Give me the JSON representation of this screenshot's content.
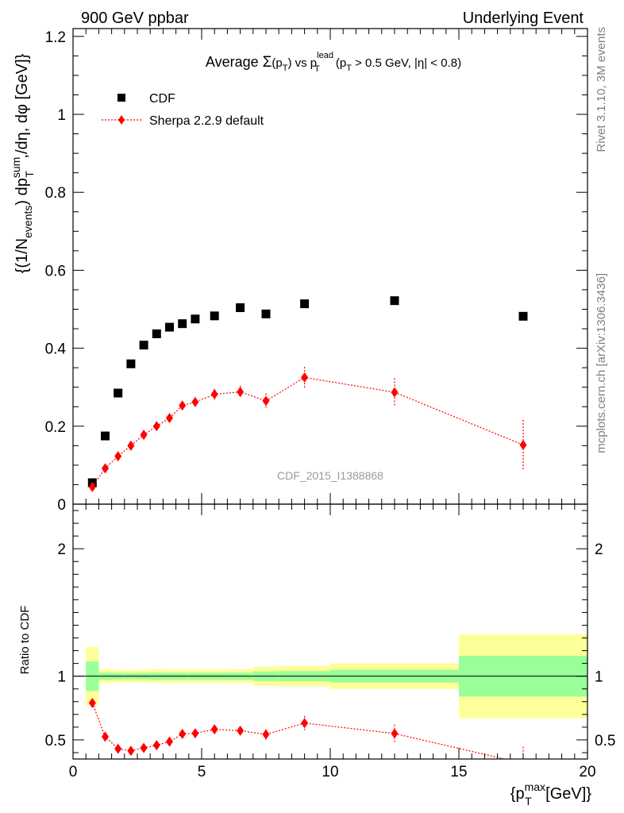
{
  "header": {
    "left": "900 GeV ppbar",
    "right": "Underlying Event"
  },
  "side_labels": {
    "rivet": "Rivet 3.1.10,  3M events",
    "mcplots": "mcplots.cern.ch [arXiv:1306.3436]"
  },
  "colors": {
    "cdf": "#000000",
    "sherpa": "#ff0000",
    "band_inner": "#99ff99",
    "band_outer": "#ffff99"
  },
  "chart_data": [
    {
      "type": "scatter",
      "panel": "main",
      "title_parts": {
        "prefix": "Average ",
        "sigma": "Σ",
        "pt": "(p",
        "pt_sub": "T",
        "pt_close": ")",
        "vs": " vs p",
        "lead_sup": "lead",
        "lead_sub": "T",
        "cut": " (p",
        "cut_sub": "T",
        "cut_rest": " > 0.5 GeV, |η| < 0.8)"
      },
      "ylabel_parts": {
        "a": "{(1/N",
        "a_sub": "events",
        "b": ") dp",
        "b_sup": "sum",
        "b_sub": "T",
        "c": " ,/dη, dφ [GeV]}"
      },
      "analysis_tag": "CDF_2015_I1388868",
      "xlim": [
        0,
        20
      ],
      "ylim": [
        0,
        1.22
      ],
      "yticks": [
        0,
        0.2,
        0.4,
        0.6,
        0.8,
        1,
        1.2
      ],
      "ytick_labels": [
        "0",
        "0.2",
        "0.4",
        "0.6",
        "0.8",
        "1",
        "1.2"
      ],
      "legend_position": "top-left",
      "series": [
        {
          "name": "CDF",
          "marker": "square",
          "x": [
            0.75,
            1.25,
            1.75,
            2.25,
            2.75,
            3.25,
            3.75,
            4.25,
            4.75,
            5.5,
            6.5,
            7.5,
            9.0,
            12.5,
            17.5
          ],
          "y": [
            0.055,
            0.175,
            0.285,
            0.36,
            0.408,
            0.437,
            0.454,
            0.463,
            0.475,
            0.483,
            0.504,
            0.488,
            0.514,
            0.522,
            0.482
          ],
          "xerr": [
            0.25,
            0.25,
            0.25,
            0.25,
            0.25,
            0.25,
            0.25,
            0.25,
            0.25,
            0.5,
            0.5,
            0.5,
            1.0,
            2.5,
            2.5
          ],
          "yerr": [
            0.004,
            0.004,
            0.005,
            0.006,
            0.006,
            0.007,
            0.007,
            0.007,
            0.008,
            0.008,
            0.009,
            0.009,
            0.01,
            0.012,
            0.02
          ]
        },
        {
          "name": "Sherpa 2.2.9 default",
          "marker": "diamond",
          "x": [
            0.75,
            1.25,
            1.75,
            2.25,
            2.75,
            3.25,
            3.75,
            4.25,
            4.75,
            5.5,
            6.5,
            7.5,
            9.0,
            12.5,
            17.5
          ],
          "y": [
            0.044,
            0.092,
            0.123,
            0.15,
            0.178,
            0.2,
            0.221,
            0.253,
            0.262,
            0.282,
            0.288,
            0.265,
            0.325,
            0.287,
            0.152
          ],
          "yerr": [
            0.004,
            0.006,
            0.007,
            0.008,
            0.009,
            0.01,
            0.01,
            0.011,
            0.012,
            0.014,
            0.016,
            0.019,
            0.027,
            0.036,
            0.064
          ]
        }
      ]
    },
    {
      "type": "scatter",
      "panel": "ratio",
      "ylabel": "Ratio to CDF",
      "xlabel_parts": {
        "a": "{p",
        "a_sup": "max",
        "a_sub": "T",
        "b": " [GeV]}"
      },
      "xlim": [
        0,
        20
      ],
      "ylim": [
        0.35,
        2.35
      ],
      "xticks": [
        0,
        5,
        10,
        15,
        20
      ],
      "xtick_labels": [
        "0",
        "5",
        "10",
        "15",
        "20"
      ],
      "yticks": [
        0.5,
        1,
        2
      ],
      "ytick_labels": [
        "0.5",
        "1",
        "2"
      ],
      "reference_line": 1,
      "bands": {
        "x_edges": [
          0.5,
          1.0,
          1.5,
          2.0,
          2.5,
          3.0,
          3.5,
          4.0,
          4.5,
          5.0,
          6.0,
          7.0,
          8.0,
          10.0,
          15.0,
          20.0
        ],
        "inner": [
          0.115,
          0.028,
          0.025,
          0.024,
          0.025,
          0.028,
          0.027,
          0.027,
          0.027,
          0.027,
          0.028,
          0.038,
          0.04,
          0.05,
          0.16
        ],
        "outer": [
          0.23,
          0.055,
          0.05,
          0.048,
          0.05,
          0.055,
          0.054,
          0.054,
          0.054,
          0.054,
          0.055,
          0.075,
          0.08,
          0.1,
          0.33
        ]
      },
      "series": [
        {
          "name": "Sherpa 2.2.9 default",
          "marker": "diamond",
          "x": [
            0.75,
            1.25,
            1.75,
            2.25,
            2.75,
            3.25,
            3.75,
            4.25,
            4.75,
            5.5,
            6.5,
            7.5,
            9.0,
            12.5,
            17.5
          ],
          "y": [
            0.79,
            0.525,
            0.43,
            0.415,
            0.437,
            0.458,
            0.486,
            0.547,
            0.552,
            0.583,
            0.572,
            0.543,
            0.632,
            0.55,
            0.316
          ],
          "yerr": [
            0.02,
            0.02,
            0.02,
            0.02,
            0.02,
            0.02,
            0.022,
            0.024,
            0.026,
            0.03,
            0.033,
            0.04,
            0.055,
            0.07,
            0.13
          ]
        }
      ]
    }
  ]
}
